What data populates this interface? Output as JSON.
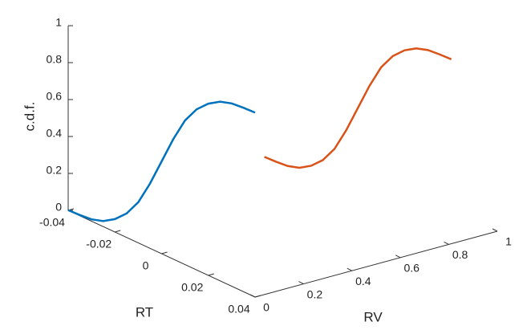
{
  "chart_data": {
    "type": "line3d",
    "xlabel": "RT",
    "ylabel": "RV",
    "zlabel": "c.d.f.",
    "xlim": [
      -0.04,
      0.04
    ],
    "xticks": [
      -0.04,
      -0.02,
      0,
      0.02,
      0.04
    ],
    "ylim": [
      0,
      1
    ],
    "yticks": [
      0,
      0.2,
      0.4,
      0.6,
      0.8,
      1
    ],
    "zlim": [
      0,
      1
    ],
    "zticks": [
      0,
      0.2,
      0.4,
      0.6,
      0.8,
      1
    ],
    "x": [
      -0.04,
      -0.035,
      -0.03,
      -0.025,
      -0.02,
      -0.015,
      -0.01,
      -0.005,
      0,
      0.005,
      0.01,
      0.015,
      0.02,
      0.025,
      0.03,
      0.035,
      0.04
    ],
    "series": [
      {
        "color": "#0072bd",
        "y": 0,
        "values": [
          0.001,
          0.004,
          0.01,
          0.03,
          0.07,
          0.13,
          0.22,
          0.35,
          0.5,
          0.65,
          0.78,
          0.87,
          0.93,
          0.97,
          0.99,
          0.996,
          0.999
        ]
      },
      {
        "color": "#d95319",
        "y": 0.81,
        "values": [
          0.001,
          0.004,
          0.01,
          0.03,
          0.07,
          0.13,
          0.22,
          0.35,
          0.5,
          0.65,
          0.78,
          0.87,
          0.93,
          0.97,
          0.99,
          0.996,
          0.999
        ]
      }
    ]
  }
}
